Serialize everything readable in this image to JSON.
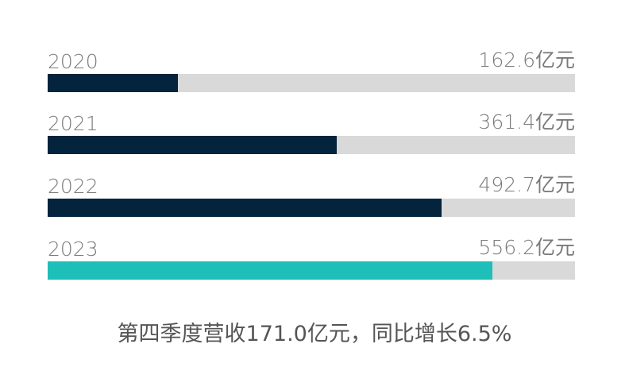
{
  "chart_data": {
    "type": "bar",
    "orientation": "horizontal",
    "categories": [
      "2020",
      "2021",
      "2022",
      "2023"
    ],
    "values": [
      162.6,
      361.4,
      492.7,
      556.2
    ],
    "value_labels": [
      "162.6亿元",
      "361.4亿元",
      "492.7亿元",
      "556.2亿元"
    ],
    "unit": "亿元",
    "xlim": [
      0,
      660
    ],
    "grid": false,
    "colors": {
      "default": "#04233d",
      "highlight": "#1fbfb9",
      "track": "#d9d9d9"
    },
    "highlight_index": 3
  },
  "caption": "第四季度营收171.0亿元，同比增长6.5%"
}
